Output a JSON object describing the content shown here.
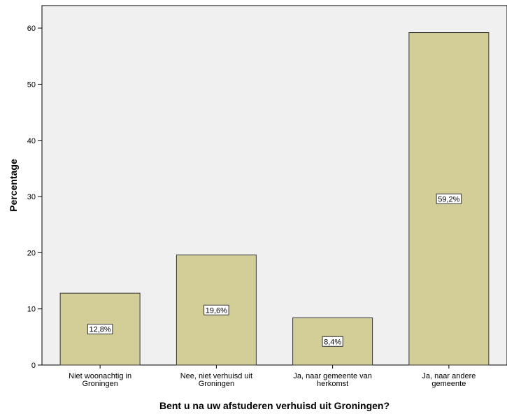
{
  "chart_data": {
    "type": "bar",
    "categories": [
      [
        "Niet woonachtig in",
        "Groningen"
      ],
      [
        "Nee, niet verhuisd uit",
        "Groningen"
      ],
      [
        "Ja, naar gemeente van",
        "herkomst"
      ],
      [
        "Ja, naar andere",
        "gemeente"
      ]
    ],
    "values": [
      12.8,
      19.6,
      8.4,
      59.2
    ],
    "data_labels": [
      "12,8%",
      "19,6%",
      "8,4%",
      "59,2%"
    ],
    "xlabel": "Bent u na uw afstuderen verhuisd uit Groningen?",
    "ylabel": "Percentage",
    "ylim": [
      0,
      64
    ],
    "yticks": [
      0,
      10,
      20,
      30,
      40,
      50,
      60
    ],
    "grid": false,
    "legend": "none",
    "colors": {
      "plot_background": "#f0f0f0",
      "bar_fill": "#d3ce97",
      "bar_stroke": "#333333",
      "axis": "#000000",
      "label_box": "#ffffff"
    }
  }
}
